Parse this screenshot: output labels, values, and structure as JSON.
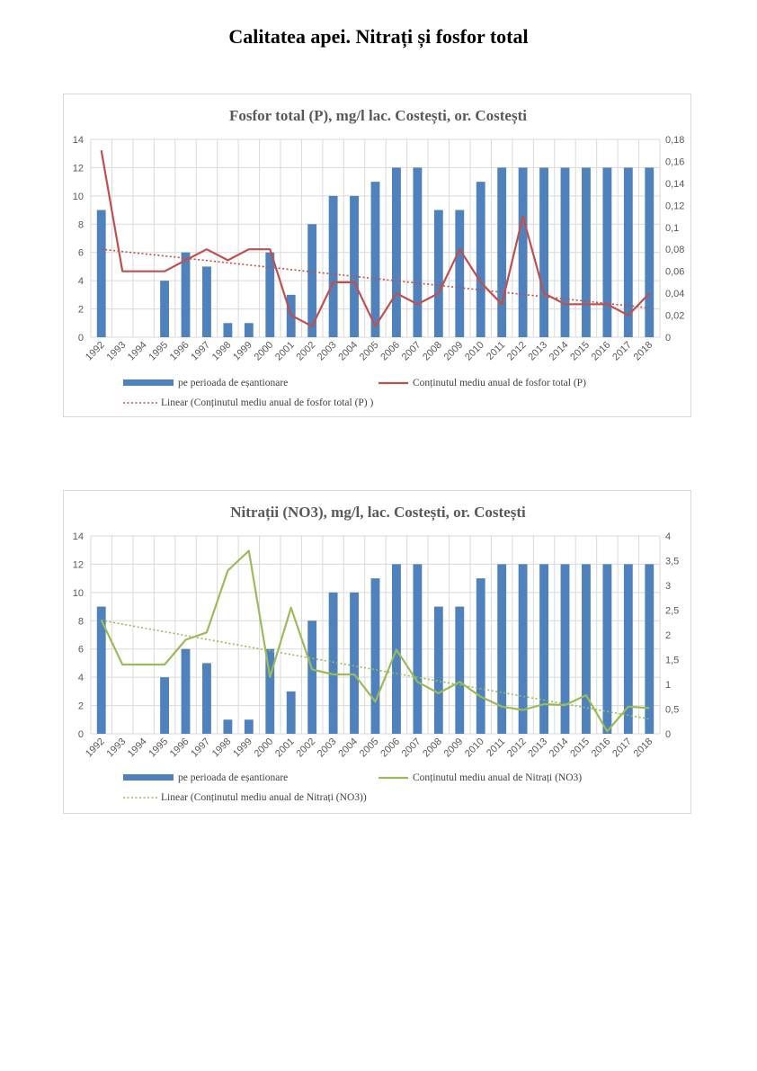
{
  "page": {
    "title": "Calitatea apei. Nitrați și fosfor total"
  },
  "chart_data": [
    {
      "type": "bar+line",
      "title": "Fosfor total (P), mg/l lac. Costești, or. Costești",
      "categories": [
        "1992",
        "1993",
        "1994",
        "1995",
        "1996",
        "1997",
        "1998",
        "1999",
        "2000",
        "2001",
        "2002",
        "2003",
        "2004",
        "2005",
        "2006",
        "2007",
        "2008",
        "2009",
        "2010",
        "2011",
        "2012",
        "2013",
        "2014",
        "2015",
        "2016",
        "2017",
        "2018"
      ],
      "left_axis": {
        "ylim": [
          0,
          14
        ],
        "ticks": [
          "0",
          "2",
          "4",
          "6",
          "8",
          "10",
          "12",
          "14"
        ]
      },
      "right_axis": {
        "ylim": [
          0,
          0.18
        ],
        "ticks": [
          "0",
          "0,02",
          "0,04",
          "0,06",
          "0,08",
          "0,1",
          "0,12",
          "0,14",
          "0,16",
          "0,18"
        ]
      },
      "series": [
        {
          "name": "pe perioada de eșantionare",
          "type": "bar",
          "axis": "left",
          "color": "#4f81bd",
          "values": [
            9,
            null,
            null,
            4,
            6,
            5,
            1,
            1,
            6,
            3,
            8,
            10,
            10,
            11,
            12,
            12,
            9,
            9,
            11,
            12,
            12,
            12,
            12,
            12,
            12,
            12,
            12
          ]
        },
        {
          "name": "Conținutul mediu anual de fosfor total (P)",
          "type": "line",
          "axis": "right",
          "color": "#c0504d",
          "values": [
            0.17,
            0.06,
            0.06,
            0.06,
            0.07,
            0.08,
            0.07,
            0.08,
            0.08,
            0.02,
            0.01,
            0.05,
            0.05,
            0.01,
            0.04,
            0.03,
            0.04,
            0.08,
            0.05,
            0.03,
            0.11,
            0.04,
            0.03,
            0.03,
            0.03,
            0.02,
            0.04
          ]
        },
        {
          "name": "Linear (Conținutul mediu anual de fosfor total (P) )",
          "type": "trendline",
          "axis": "right",
          "color": "#c0504d"
        }
      ]
    },
    {
      "type": "bar+line",
      "title": "Nitrații (NO3), mg/l, lac. Costești, or. Costești",
      "categories": [
        "1992",
        "1993",
        "1994",
        "1995",
        "1996",
        "1997",
        "1998",
        "1999",
        "2000",
        "2001",
        "2002",
        "2003",
        "2004",
        "2005",
        "2006",
        "2007",
        "2008",
        "2009",
        "2010",
        "2011",
        "2012",
        "2013",
        "2014",
        "2015",
        "2016",
        "2017",
        "2018"
      ],
      "left_axis": {
        "ylim": [
          0,
          14
        ],
        "ticks": [
          "0",
          "2",
          "4",
          "6",
          "8",
          "10",
          "12",
          "14"
        ]
      },
      "right_axis": {
        "ylim": [
          0,
          4
        ],
        "ticks": [
          "0",
          "0,5",
          "1",
          "1,5",
          "2",
          "2,5",
          "3",
          "3,5",
          "4"
        ]
      },
      "series": [
        {
          "name": "pe perioada de eșantionare",
          "type": "bar",
          "axis": "left",
          "color": "#4f81bd",
          "values": [
            9,
            null,
            null,
            4,
            6,
            5,
            1,
            1,
            6,
            3,
            8,
            10,
            10,
            11,
            12,
            12,
            9,
            9,
            11,
            12,
            12,
            12,
            12,
            12,
            12,
            12,
            12
          ]
        },
        {
          "name": "Conținutul mediu anual de Nitrați (NO3)",
          "type": "line",
          "axis": "right",
          "color": "#9bbb59",
          "values": [
            2.3,
            1.4,
            1.4,
            1.4,
            1.9,
            2.05,
            3.3,
            3.7,
            1.15,
            2.55,
            1.3,
            1.2,
            1.2,
            0.65,
            1.7,
            1.05,
            0.82,
            1.05,
            0.75,
            0.55,
            0.48,
            0.6,
            0.58,
            0.78,
            0.05,
            0.55,
            0.52
          ]
        },
        {
          "name": "Linear (Conținutul mediu anual de Nitrați (NO3))",
          "type": "trendline",
          "axis": "right",
          "color": "#9bbb59"
        }
      ]
    }
  ]
}
